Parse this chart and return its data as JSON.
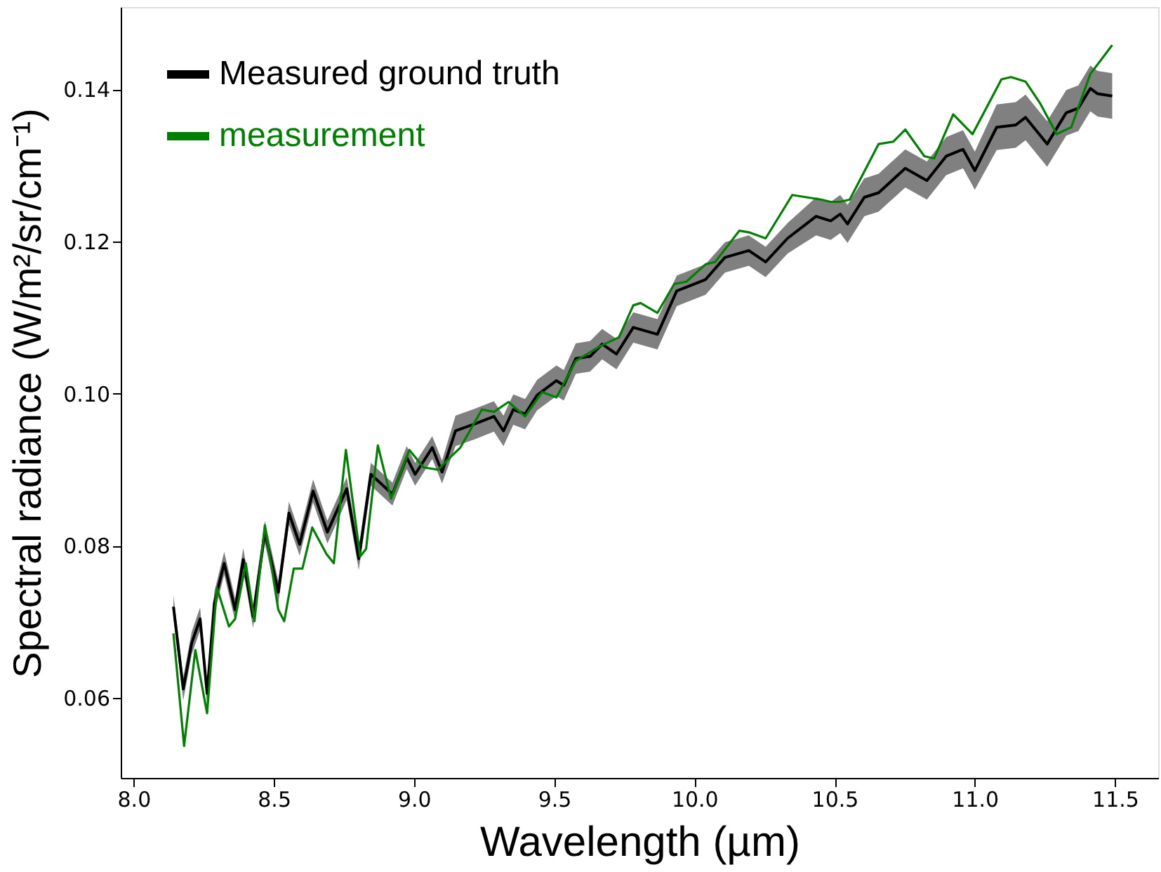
{
  "chart_data": {
    "type": "line",
    "xlabel": "Wavelength (µm)",
    "ylabel": "Spectral radiance (W/m²/sr/cm⁻¹)",
    "xlim": [
      7.954,
      11.654
    ],
    "ylim": [
      0.0495,
      0.1508
    ],
    "xticks": [
      {
        "value": 8,
        "label": "8.0"
      },
      8.5,
      {
        "value": 9,
        "label": "9.0"
      },
      9.5,
      {
        "value": 10,
        "label": "10.0"
      },
      10.5,
      {
        "value": 11,
        "label": "11.0"
      },
      11.5
    ],
    "yticks": [
      0.06,
      0.08,
      {
        "value": 0.1,
        "label": "0.10"
      },
      0.12,
      0.14
    ],
    "grid": false,
    "legend": "top left",
    "line_style": "solid",
    "marker": "none",
    "series": [
      {
        "name": "Measured ground truth",
        "color": "#000000",
        "x": [
          8.142,
          8.177,
          8.207,
          8.237,
          8.262,
          8.288,
          8.323,
          8.362,
          8.391,
          8.426,
          8.468,
          8.516,
          8.554,
          8.592,
          8.64,
          8.691,
          8.76,
          8.803,
          8.846,
          8.923,
          8.974,
          9.004,
          9.065,
          9.1,
          9.148,
          9.216,
          9.285,
          9.319,
          9.354,
          9.396,
          9.439,
          9.508,
          9.534,
          9.577,
          9.628,
          9.671,
          9.722,
          9.782,
          9.868,
          9.937,
          10.04,
          10.109,
          10.194,
          10.254,
          10.332,
          10.434,
          10.486,
          10.52,
          10.546,
          10.606,
          10.657,
          10.752,
          10.829,
          10.898,
          10.958,
          11.0,
          11.078,
          11.146,
          11.181,
          11.258,
          11.326,
          11.369,
          11.412,
          11.438,
          11.49
        ],
        "values": [
          0.072,
          0.0612,
          0.0672,
          0.0704,
          0.0606,
          0.0725,
          0.0777,
          0.0716,
          0.0782,
          0.0707,
          0.0818,
          0.0739,
          0.0843,
          0.0802,
          0.0872,
          0.0818,
          0.0875,
          0.0783,
          0.0894,
          0.0868,
          0.0916,
          0.0894,
          0.0929,
          0.0897,
          0.0951,
          0.096,
          0.097,
          0.0951,
          0.0979,
          0.0973,
          0.0998,
          0.1017,
          0.1011,
          0.1046,
          0.1049,
          0.1065,
          0.1052,
          0.1087,
          0.1078,
          0.1135,
          0.115,
          0.1179,
          0.1188,
          0.1173,
          0.1204,
          0.1233,
          0.1227,
          0.1236,
          0.1223,
          0.1258,
          0.1264,
          0.1296,
          0.128,
          0.1312,
          0.1321,
          0.1293,
          0.135,
          0.1353,
          0.1363,
          0.1328,
          0.1369,
          0.1375,
          0.1401,
          0.1394,
          0.1391
        ],
        "lower": [
          0.0705,
          0.0597,
          0.0657,
          0.0689,
          0.0591,
          0.071,
          0.0762,
          0.0701,
          0.0767,
          0.0692,
          0.0803,
          0.0724,
          0.0828,
          0.0787,
          0.0857,
          0.0803,
          0.086,
          0.0768,
          0.0879,
          0.0853,
          0.0901,
          0.0879,
          0.0914,
          0.0882,
          0.0931,
          0.094,
          0.095,
          0.0931,
          0.0959,
          0.0953,
          0.0978,
          0.0997,
          0.0991,
          0.1026,
          0.1029,
          0.1045,
          0.1032,
          0.1067,
          0.1058,
          0.1115,
          0.113,
          0.1159,
          0.1168,
          0.1153,
          0.1184,
          0.1208,
          0.1202,
          0.1211,
          0.1198,
          0.1233,
          0.1239,
          0.1271,
          0.1255,
          0.1287,
          0.1296,
          0.1268,
          0.132,
          0.1323,
          0.1333,
          0.1298,
          0.1339,
          0.1345,
          0.1371,
          0.1364,
          0.1361
        ],
        "upper": [
          0.0735,
          0.0627,
          0.0687,
          0.0719,
          0.0621,
          0.074,
          0.0792,
          0.0731,
          0.0797,
          0.0722,
          0.0833,
          0.0754,
          0.0858,
          0.0817,
          0.0887,
          0.0833,
          0.089,
          0.0798,
          0.0909,
          0.0883,
          0.0931,
          0.0909,
          0.0944,
          0.0912,
          0.0971,
          0.098,
          0.099,
          0.0971,
          0.0999,
          0.0993,
          0.1018,
          0.1037,
          0.1031,
          0.1066,
          0.1069,
          0.1085,
          0.1072,
          0.1107,
          0.1098,
          0.1155,
          0.117,
          0.1199,
          0.1208,
          0.1193,
          0.1224,
          0.1258,
          0.1252,
          0.1261,
          0.1248,
          0.1283,
          0.1289,
          0.1321,
          0.1305,
          0.1337,
          0.1346,
          0.1318,
          0.138,
          0.1383,
          0.1393,
          0.1358,
          0.1399,
          0.1405,
          0.1431,
          0.1424,
          0.1421
        ]
      },
      {
        "name": "measurement",
        "color": "#008000",
        "x": [
          8.142,
          8.18,
          8.22,
          8.262,
          8.297,
          8.34,
          8.362,
          8.4,
          8.431,
          8.468,
          8.516,
          8.537,
          8.571,
          8.602,
          8.637,
          8.688,
          8.714,
          8.757,
          8.808,
          8.829,
          8.871,
          8.918,
          8.983,
          9.034,
          9.086,
          9.12,
          9.165,
          9.242,
          9.285,
          9.337,
          9.396,
          9.457,
          9.508,
          9.577,
          9.662,
          9.731,
          9.782,
          9.808,
          9.868,
          9.928,
          9.971,
          10.04,
          10.074,
          10.16,
          10.194,
          10.254,
          10.349,
          10.452,
          10.486,
          10.52,
          10.554,
          10.657,
          10.709,
          10.752,
          10.82,
          10.855,
          10.923,
          10.992,
          11.095,
          11.129,
          11.181,
          11.232,
          11.292,
          11.344,
          11.412,
          11.49
        ],
        "values": [
          0.0685,
          0.0537,
          0.0663,
          0.058,
          0.0745,
          0.0694,
          0.0704,
          0.0777,
          0.0701,
          0.0827,
          0.0716,
          0.0701,
          0.077,
          0.077,
          0.0824,
          0.0789,
          0.0777,
          0.0926,
          0.0786,
          0.0796,
          0.0932,
          0.0862,
          0.0926,
          0.0903,
          0.09,
          0.0913,
          0.0929,
          0.0979,
          0.0976,
          0.0989,
          0.097,
          0.1002,
          0.0995,
          0.1043,
          0.1062,
          0.1074,
          0.1116,
          0.1119,
          0.1106,
          0.1144,
          0.1147,
          0.117,
          0.1173,
          0.1214,
          0.1212,
          0.1204,
          0.1261,
          0.1255,
          0.1252,
          0.1252,
          0.1255,
          0.1328,
          0.1331,
          0.1347,
          0.1312,
          0.1309,
          0.1367,
          0.1341,
          0.1413,
          0.1416,
          0.141,
          0.1382,
          0.1341,
          0.135,
          0.142,
          0.1458
        ]
      }
    ]
  }
}
